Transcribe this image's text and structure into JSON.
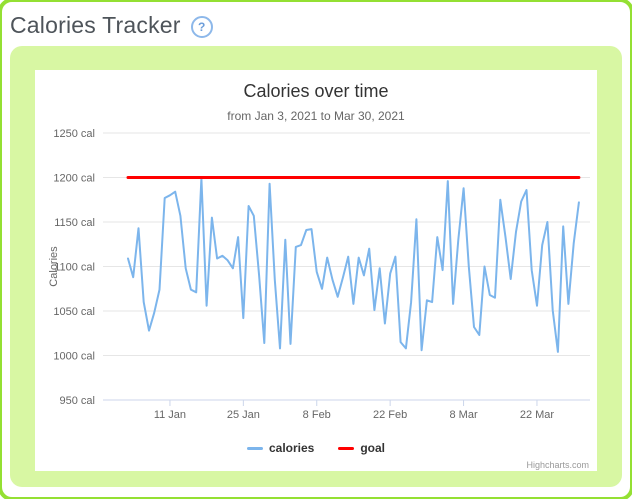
{
  "page": {
    "title": "Calories Tracker",
    "help_icon": "?"
  },
  "colors": {
    "page_border_green": "#94e033",
    "panel_green": "#d8f7a3",
    "calories_blue": "#7cb5ec",
    "goal_red": "#ff0000",
    "grid": "#e6e6e6",
    "axis_line": "#ccd6eb",
    "tick_label": "#666666",
    "chart_title": "#333333"
  },
  "chart_data": {
    "type": "line",
    "title": "Calories over time",
    "subtitle": "from Jan 3, 2021 to Mar 30, 2021",
    "ylabel": "Calories",
    "ylim": [
      950,
      1250
    ],
    "x_start": "Jan 3, 2021",
    "x_end": "Mar 30, 2021",
    "x_interval": "1 day",
    "grid": true,
    "legend_position": "bottom-center",
    "credits": "Highcharts.com",
    "yticks": [
      {
        "value": 950,
        "label": "950 cal"
      },
      {
        "value": 1000,
        "label": "1000 cal"
      },
      {
        "value": 1050,
        "label": "1050 cal"
      },
      {
        "value": 1100,
        "label": "1100 cal"
      },
      {
        "value": 1150,
        "label": "1150 cal"
      },
      {
        "value": 1200,
        "label": "1200 cal"
      },
      {
        "value": 1250,
        "label": "1250 cal"
      }
    ],
    "xticks": [
      {
        "day": 8,
        "label": "11 Jan"
      },
      {
        "day": 22,
        "label": "25 Jan"
      },
      {
        "day": 36,
        "label": "8 Feb"
      },
      {
        "day": 50,
        "label": "22 Feb"
      },
      {
        "day": 64,
        "label": "8 Mar"
      },
      {
        "day": 78,
        "label": "22 Mar"
      }
    ],
    "series": [
      {
        "name": "calories",
        "color": "#7cb5ec",
        "line_width": 2,
        "values": [
          1109,
          1088,
          1143,
          1060,
          1028,
          1048,
          1074,
          1177,
          1180,
          1184,
          1157,
          1098,
          1074,
          1071,
          1199,
          1056,
          1155,
          1109,
          1112,
          1107,
          1098,
          1133,
          1042,
          1168,
          1157,
          1090,
          1014,
          1193,
          1085,
          1008,
          1130,
          1013,
          1122,
          1124,
          1141,
          1142,
          1094,
          1075,
          1110,
          1085,
          1066,
          1088,
          1111,
          1058,
          1110,
          1090,
          1120,
          1051,
          1098,
          1036,
          1092,
          1111,
          1015,
          1008,
          1060,
          1153,
          1006,
          1062,
          1060,
          1133,
          1096,
          1196,
          1058,
          1130,
          1188,
          1100,
          1032,
          1023,
          1100,
          1068,
          1065,
          1175,
          1133,
          1086,
          1139,
          1173,
          1186,
          1096,
          1056,
          1124,
          1150,
          1051,
          1004,
          1145,
          1058,
          1126,
          1172
        ]
      },
      {
        "name": "goal",
        "color": "#ff0000",
        "line_width": 3,
        "constant": 1200
      }
    ]
  }
}
